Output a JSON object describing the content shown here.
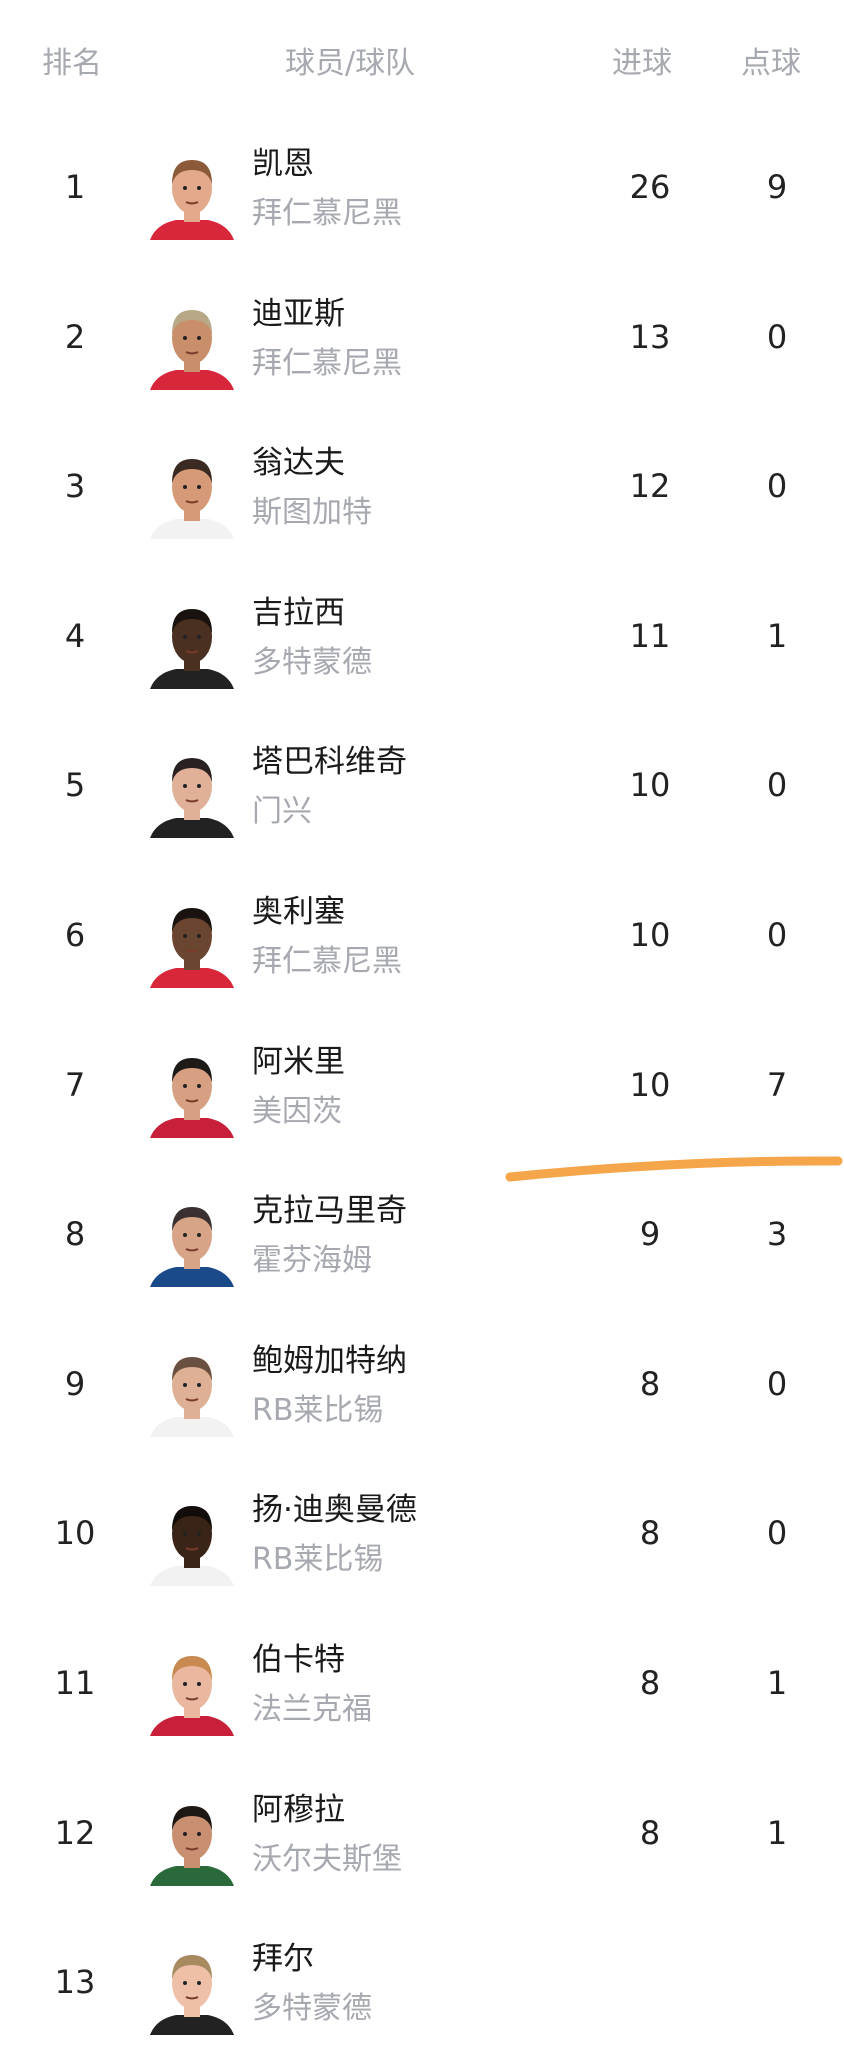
{
  "header": {
    "rank": "排名",
    "player_team": "球员/球队",
    "goals": "进球",
    "penalties": "点球"
  },
  "colors": {
    "accent_underline": "#f5a64a",
    "text_primary": "#1a1a1a",
    "text_secondary": "#a6a9b0"
  },
  "rows": [
    {
      "rank": "1",
      "name": "凯恩",
      "team": "拜仁慕尼黑",
      "goals": "26",
      "penalties": "9",
      "skin": "#e2a98a",
      "hair": "#8a5a3a",
      "kit": "#d8263a"
    },
    {
      "rank": "2",
      "name": "迪亚斯",
      "team": "拜仁慕尼黑",
      "goals": "13",
      "penalties": "0",
      "skin": "#c98e6a",
      "hair": "#b8a888",
      "kit": "#d8263a"
    },
    {
      "rank": "3",
      "name": "翁达夫",
      "team": "斯图加特",
      "goals": "12",
      "penalties": "0",
      "skin": "#d69a78",
      "hair": "#3a2a22",
      "kit": "#f2f2f2"
    },
    {
      "rank": "4",
      "name": "吉拉西",
      "team": "多特蒙德",
      "goals": "11",
      "penalties": "1",
      "skin": "#4a3020",
      "hair": "#1a120e",
      "kit": "#222222"
    },
    {
      "rank": "5",
      "name": "塔巴科维奇",
      "team": "门兴",
      "goals": "10",
      "penalties": "0",
      "skin": "#e0b098",
      "hair": "#2a2220",
      "kit": "#222222"
    },
    {
      "rank": "6",
      "name": "奥利塞",
      "team": "拜仁慕尼黑",
      "goals": "10",
      "penalties": "0",
      "skin": "#6a4530",
      "hair": "#1a120e",
      "kit": "#d8263a"
    },
    {
      "rank": "7",
      "name": "阿米里",
      "team": "美因茨",
      "goals": "10",
      "penalties": "7",
      "skin": "#d8a082",
      "hair": "#1e1a18",
      "kit": "#c8203a"
    },
    {
      "rank": "8",
      "name": "克拉马里奇",
      "team": "霍芬海姆",
      "goals": "9",
      "penalties": "3",
      "skin": "#d8a488",
      "hair": "#3a3030",
      "kit": "#1a4a8a"
    },
    {
      "rank": "9",
      "name": "鲍姆加特纳",
      "team": "RB莱比锡",
      "goals": "8",
      "penalties": "0",
      "skin": "#deb095",
      "hair": "#6a5040",
      "kit": "#f2f2f2"
    },
    {
      "rank": "10",
      "name": "扬·迪奥曼德",
      "team": "RB莱比锡",
      "goals": "8",
      "penalties": "0",
      "skin": "#3a2418",
      "hair": "#120c0a",
      "kit": "#f2f2f2"
    },
    {
      "rank": "11",
      "name": "伯卡特",
      "team": "法兰克福",
      "goals": "8",
      "penalties": "1",
      "skin": "#eab8a0",
      "hair": "#c88a50",
      "kit": "#c8203a"
    },
    {
      "rank": "12",
      "name": "阿穆拉",
      "team": "沃尔夫斯堡",
      "goals": "8",
      "penalties": "1",
      "skin": "#c89070",
      "hair": "#1e1814",
      "kit": "#2a6a3a"
    },
    {
      "rank": "13",
      "name": "拜尔",
      "team": "多特蒙德",
      "goals": "",
      "penalties": "",
      "skin": "#eec0a8",
      "hair": "#a88a60",
      "kit": "#222222"
    }
  ]
}
